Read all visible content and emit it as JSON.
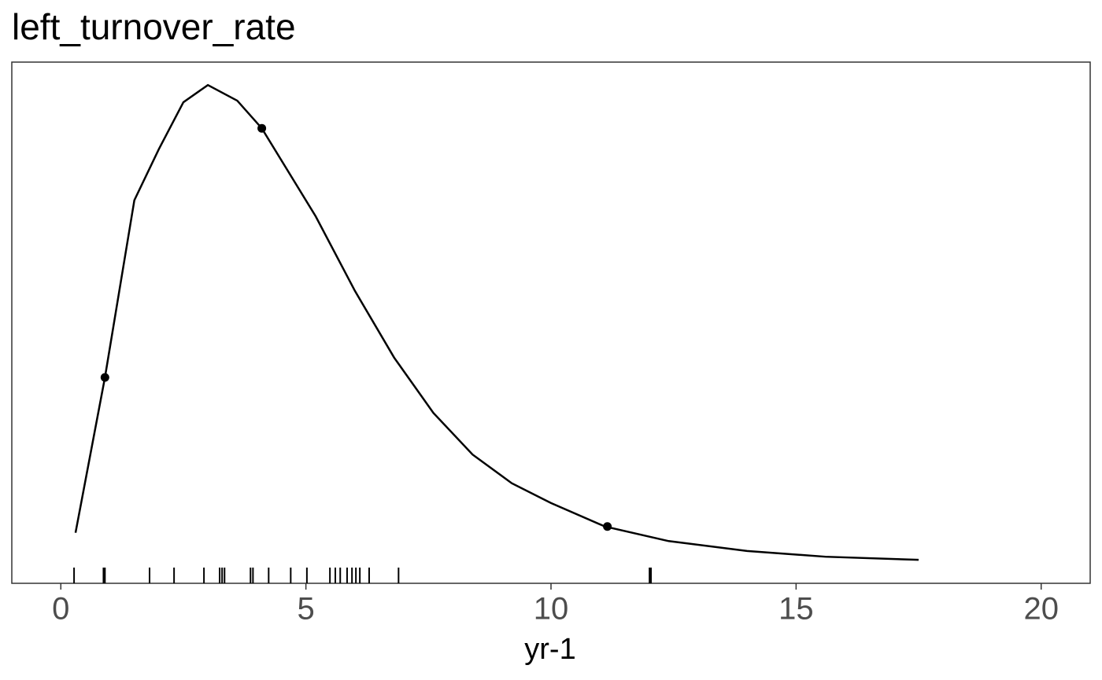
{
  "chart_data": {
    "type": "density",
    "title": "left_turnover_rate",
    "xlabel": "yr-1",
    "xlim": [
      -1,
      21
    ],
    "xticks": [
      0,
      5,
      10,
      15,
      20
    ],
    "ylim": [
      0,
      1
    ],
    "color": "#000000",
    "curve": {
      "x": [
        0.3,
        0.9,
        1.5,
        2.0,
        2.5,
        3.0,
        3.6,
        4.1,
        5.2,
        6.0,
        6.8,
        7.6,
        8.4,
        9.2,
        10,
        11.1,
        12.4,
        14,
        15.6,
        17.5
      ],
      "values": [
        0.097,
        0.395,
        0.735,
        0.833,
        0.923,
        0.956,
        0.926,
        0.873,
        0.704,
        0.561,
        0.433,
        0.327,
        0.247,
        0.192,
        0.154,
        0.109,
        0.081,
        0.062,
        0.051,
        0.045
      ]
    },
    "points": {
      "x": [
        0.9,
        4.1,
        11.15
      ],
      "values": [
        0.395,
        0.873,
        0.109
      ]
    },
    "rug": {
      "x": [
        0.27,
        0.87,
        0.9,
        1.81,
        2.31,
        2.92,
        3.24,
        3.29,
        3.34,
        3.87,
        3.92,
        4.24,
        4.69,
        5.02,
        5.49,
        5.6,
        5.7,
        5.84,
        5.94,
        6.02,
        6.1,
        6.29,
        6.89,
        12.01,
        12.04
      ]
    }
  }
}
